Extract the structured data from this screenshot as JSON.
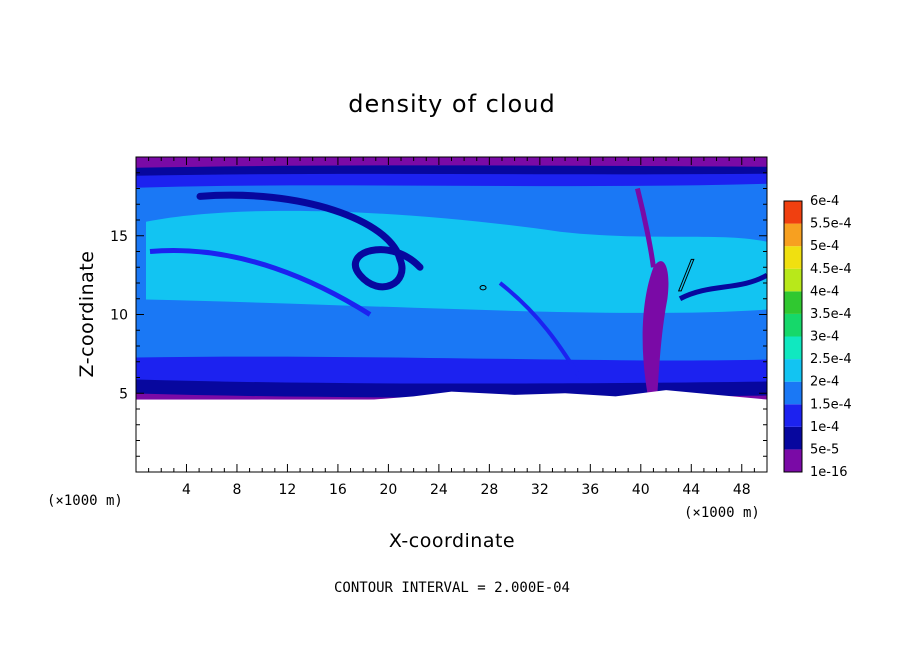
{
  "chart_data": {
    "type": "heatmap",
    "title": "density of cloud",
    "xlabel": "X-coordinate",
    "ylabel": "Z-coordinate",
    "x_unit": "(×1000 m)",
    "x_unit_right": "(×1000 m)",
    "xlim": [
      0,
      50
    ],
    "ylim": [
      0,
      20
    ],
    "x_ticks": [
      4,
      8,
      12,
      16,
      20,
      24,
      28,
      32,
      36,
      40,
      44,
      48
    ],
    "y_ticks": [
      5,
      10,
      15
    ],
    "contour_interval_text": "CONTOUR INTERVAL = 2.000E-04",
    "colorbar": {
      "levels": [
        "1e-16",
        "5e-5",
        "1e-4",
        "1.5e-4",
        "2e-4",
        "2.5e-4",
        "3e-4",
        "3.5e-4",
        "4e-4",
        "4.5e-4",
        "5e-4",
        "5.5e-4",
        "6e-4"
      ],
      "colors": [
        "#7a0aa6",
        "#07079e",
        "#1c22f0",
        "#1a78f5",
        "#12c4f2",
        "#10e8c0",
        "#16d86a",
        "#30c830",
        "#b8e81a",
        "#f0e010",
        "#f7a020",
        "#f04010",
        "#f07a7a"
      ]
    },
    "field": {
      "cloud_top_z": 19.7,
      "cloud_base_z": 4.6,
      "dominant_level": "2e-4",
      "features": [
        {
          "kind": "filament",
          "level": "5e-5",
          "x_start": 16,
          "x_end": 22,
          "z_range": [
            11,
            17
          ]
        },
        {
          "kind": "plume",
          "level": "1e-16",
          "x_center": 41,
          "z_range": [
            6,
            14
          ]
        }
      ]
    }
  }
}
